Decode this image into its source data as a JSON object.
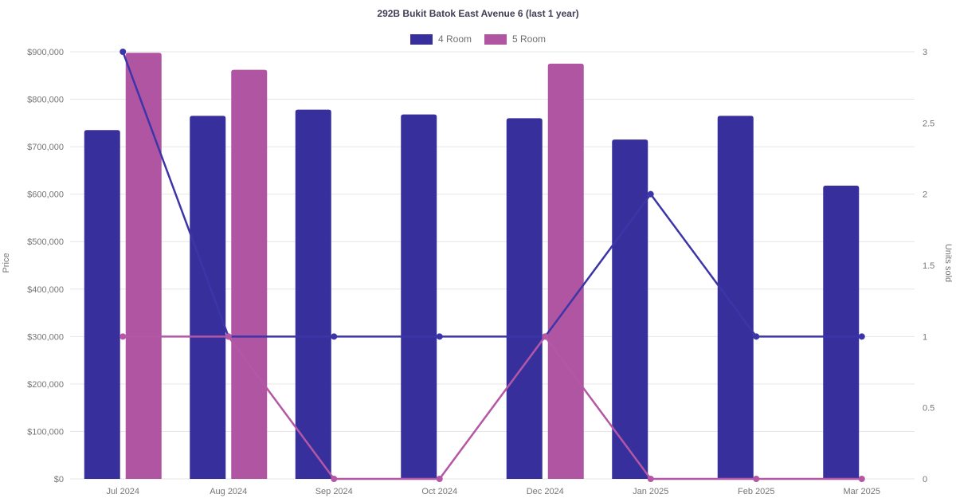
{
  "title": "292B Bukit Batok East Avenue 6 (last 1 year)",
  "legend": [
    {
      "label": "4 Room",
      "color": "#37309c"
    },
    {
      "label": "5 Room",
      "color": "#af55a2"
    }
  ],
  "axes": {
    "left": {
      "title": "Price",
      "tick_values": [
        0,
        100000,
        200000,
        300000,
        400000,
        500000,
        600000,
        700000,
        800000,
        900000
      ],
      "tick_labels": [
        "$0",
        "$100,000",
        "$200,000",
        "$300,000",
        "$400,000",
        "$500,000",
        "$600,000",
        "$700,000",
        "$800,000",
        "$900,000"
      ]
    },
    "right": {
      "title": "Units sold",
      "tick_values": [
        0,
        0.5,
        1,
        1.5,
        2,
        2.5,
        3
      ],
      "tick_labels": [
        "0",
        "0.5",
        "1",
        "1.5",
        "2",
        "2.5",
        "3"
      ]
    }
  },
  "chart_data": {
    "type": "combo-bar-line",
    "title": "292B Bukit Batok East Avenue 6 (last 1 year)",
    "categories": [
      "Jul 2024",
      "Aug 2024",
      "Sep 2024",
      "Oct 2024",
      "Dec 2024",
      "Jan 2025",
      "Feb 2025",
      "Mar 2025"
    ],
    "left_axis_label": "Price",
    "right_axis_label": "Units sold",
    "left_ylim": [
      0,
      900000
    ],
    "right_ylim": [
      0,
      3
    ],
    "grid": "horizontal",
    "legend_position": "top-center",
    "series": [
      {
        "name": "4 Room price",
        "legend": "4 Room",
        "type": "bar",
        "axis": "left",
        "color": "#37309c",
        "values": [
          735000,
          765000,
          778000,
          768000,
          760000,
          715000,
          765000,
          618000
        ]
      },
      {
        "name": "5 Room price",
        "legend": "5 Room",
        "type": "bar",
        "axis": "left",
        "color": "#af55a2",
        "values": [
          898000,
          862000,
          null,
          null,
          875000,
          null,
          null,
          null
        ]
      },
      {
        "name": "4 Room units sold",
        "legend": "4 Room",
        "type": "line",
        "axis": "right",
        "color": "#3c35a8",
        "values": [
          3,
          1,
          1,
          1,
          1,
          2,
          1,
          1
        ]
      },
      {
        "name": "5 Room units sold",
        "legend": "5 Room",
        "type": "line",
        "axis": "right",
        "color": "#b357a6",
        "values": [
          1,
          1,
          0,
          0,
          1,
          0,
          0,
          0
        ]
      }
    ]
  }
}
